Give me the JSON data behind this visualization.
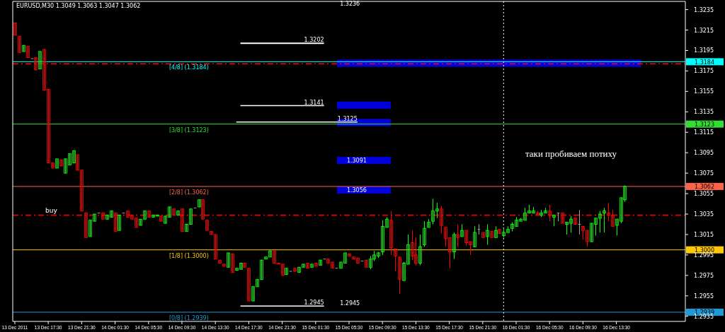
{
  "chart_data": {
    "type": "candlestick",
    "title": "EURUSD,M30 1.3049 1.3063 1.3047 1.3062",
    "x": [
      "2011-12-13T13:30",
      "2011-12-13T14:00",
      "2011-12-13T14:30",
      "2011-12-13T15:00",
      "2011-12-13T15:30",
      "2011-12-13T16:00",
      "2011-12-13T16:30",
      "2011-12-13T17:00",
      "2011-12-13T17:30",
      "2011-12-13T18:00",
      "2011-12-13T18:30",
      "2011-12-13T19:00",
      "2011-12-13T19:30",
      "2011-12-13T20:00",
      "2011-12-13T20:30",
      "2011-12-13T21:00",
      "2011-12-13T21:30",
      "2011-12-13T22:00",
      "2011-12-13T22:30",
      "2011-12-13T23:00",
      "2011-12-13T23:30",
      "2011-12-14T00:00",
      "2011-12-14T00:30",
      "2011-12-14T01:00",
      "2011-12-14T01:30",
      "2011-12-14T02:00",
      "2011-12-14T02:30",
      "2011-12-14T03:00",
      "2011-12-14T03:30",
      "2011-12-14T04:00",
      "2011-12-14T04:30",
      "2011-12-14T05:00",
      "2011-12-14T05:30",
      "2011-12-14T06:00",
      "2011-12-14T06:30",
      "2011-12-14T07:00",
      "2011-12-14T07:30",
      "2011-12-14T08:00",
      "2011-12-14T08:30",
      "2011-12-14T09:00",
      "2011-12-14T09:30",
      "2011-12-14T10:00",
      "2011-12-14T10:30",
      "2011-12-14T11:00",
      "2011-12-14T11:30",
      "2011-12-14T12:00",
      "2011-12-14T12:30",
      "2011-12-14T13:00",
      "2011-12-14T13:30",
      "2011-12-14T14:00",
      "2011-12-14T14:30",
      "2011-12-14T15:00",
      "2011-12-14T15:30",
      "2011-12-14T16:00",
      "2011-12-14T16:30",
      "2011-12-14T17:00",
      "2011-12-14T17:30",
      "2011-12-14T18:00",
      "2011-12-14T18:30",
      "2011-12-14T19:00",
      "2011-12-14T19:30",
      "2011-12-14T20:00",
      "2011-12-14T20:30",
      "2011-12-14T21:00",
      "2011-12-14T21:30",
      "2011-12-14T22:00",
      "2011-12-14T22:30",
      "2011-12-14T23:00",
      "2011-12-14T23:30",
      "2011-12-15T00:00",
      "2011-12-15T00:30",
      "2011-12-15T01:00",
      "2011-12-15T01:30",
      "2011-12-15T02:00",
      "2011-12-15T02:30",
      "2011-12-15T03:00",
      "2011-12-15T03:30",
      "2011-12-15T04:00",
      "2011-12-15T04:30",
      "2011-12-15T05:00",
      "2011-12-15T05:30",
      "2011-12-15T06:00",
      "2011-12-15T06:30",
      "2011-12-15T07:00",
      "2011-12-15T07:30",
      "2011-12-15T08:00",
      "2011-12-15T08:30",
      "2011-12-15T09:00",
      "2011-12-15T09:30",
      "2011-12-15T10:00",
      "2011-12-15T10:30",
      "2011-12-15T11:00",
      "2011-12-15T11:30",
      "2011-12-15T12:00",
      "2011-12-15T12:30",
      "2011-12-15T13:00",
      "2011-12-15T13:30",
      "2011-12-15T14:00",
      "2011-12-15T14:30",
      "2011-12-15T15:00",
      "2011-12-15T15:30",
      "2011-12-15T16:00",
      "2011-12-15T16:30",
      "2011-12-15T17:00",
      "2011-12-15T17:30",
      "2011-12-15T18:00",
      "2011-12-15T18:30",
      "2011-12-15T19:00",
      "2011-12-15T19:30",
      "2011-12-15T20:00",
      "2011-12-15T20:30",
      "2011-12-15T21:00",
      "2011-12-15T21:30",
      "2011-12-15T22:00",
      "2011-12-15T22:30",
      "2011-12-15T23:00",
      "2011-12-15T23:30",
      "2011-12-16T00:00",
      "2011-12-16T00:30",
      "2011-12-16T01:00",
      "2011-12-16T01:30",
      "2011-12-16T02:00",
      "2011-12-16T02:30",
      "2011-12-16T03:00",
      "2011-12-16T03:30",
      "2011-12-16T04:00",
      "2011-12-16T04:30",
      "2011-12-16T05:00",
      "2011-12-16T05:30",
      "2011-12-16T06:00",
      "2011-12-16T06:30",
      "2011-12-16T07:00",
      "2011-12-16T07:30",
      "2011-12-16T08:00",
      "2011-12-16T08:30",
      "2011-12-16T09:00",
      "2011-12-16T09:30",
      "2011-12-16T10:00",
      "2011-12-16T10:30",
      "2011-12-16T11:00",
      "2011-12-16T11:30",
      "2011-12-16T12:00",
      "2011-12-16T12:30",
      "2011-12-16T13:00",
      "2011-12-16T13:30",
      "2011-12-16T14:00",
      "2011-12-16T14:30"
    ],
    "ohlc": [
      [
        1.3222,
        1.3222,
        1.321,
        1.321
      ],
      [
        1.3209,
        1.3209,
        1.3193,
        1.3193
      ],
      [
        1.3194,
        1.32,
        1.3194,
        1.32
      ],
      [
        1.3199,
        1.3199,
        1.3188,
        1.3188
      ],
      [
        1.3187,
        1.3187,
        1.3187,
        1.3187
      ],
      [
        1.3188,
        1.3188,
        1.3176,
        1.3176
      ],
      [
        1.3177,
        1.3194,
        1.3177,
        1.3194
      ],
      [
        1.3196,
        1.3196,
        1.3156,
        1.3156
      ],
      [
        1.3157,
        1.3157,
        1.3085,
        1.3085
      ],
      [
        1.3085,
        1.3085,
        1.308,
        1.308
      ],
      [
        1.308,
        1.3089,
        1.308,
        1.3089
      ],
      [
        1.3088,
        1.3088,
        1.3082,
        1.3082
      ],
      [
        1.3075,
        1.3089,
        1.3075,
        1.3089
      ],
      [
        1.3083,
        1.3094,
        1.3083,
        1.3094
      ],
      [
        1.3085,
        1.3097,
        1.3085,
        1.3097
      ],
      [
        1.3093,
        1.3093,
        1.3078,
        1.3078
      ],
      [
        1.3078,
        1.3078,
        1.3038,
        1.3038
      ],
      [
        1.3036,
        1.3036,
        1.3012,
        1.3012
      ],
      [
        1.3013,
        1.3029,
        1.3013,
        1.3029
      ],
      [
        1.3028,
        1.3035,
        1.3028,
        1.3035
      ],
      [
        1.3036,
        1.3036,
        1.3036,
        1.3036
      ],
      [
        1.3036,
        1.3036,
        1.303,
        1.303
      ],
      [
        1.303,
        1.3034,
        1.303,
        1.3034
      ],
      [
        1.3032,
        1.3038,
        1.3032,
        1.3038
      ],
      [
        1.3036,
        1.3036,
        1.3018,
        1.3018
      ],
      [
        1.3019,
        1.3034,
        1.3019,
        1.3034
      ],
      [
        1.3036,
        1.3036,
        1.3036,
        1.3036
      ],
      [
        1.3038,
        1.3038,
        1.3032,
        1.3032
      ],
      [
        1.3034,
        1.3034,
        1.303,
        1.303
      ],
      [
        1.3031,
        1.3031,
        1.3022,
        1.3022
      ],
      [
        1.3024,
        1.303,
        1.3024,
        1.303
      ],
      [
        1.303,
        1.3038,
        1.303,
        1.3038
      ],
      [
        1.3038,
        1.3038,
        1.3032,
        1.3032
      ],
      [
        1.3032,
        1.3034,
        1.3032,
        1.3034
      ],
      [
        1.3033,
        1.3034,
        1.3033,
        1.3034
      ],
      [
        1.3033,
        1.3033,
        1.3028,
        1.3028
      ],
      [
        1.3026,
        1.3033,
        1.3026,
        1.3033
      ],
      [
        1.3032,
        1.3042,
        1.3032,
        1.3042
      ],
      [
        1.304,
        1.304,
        1.3034,
        1.3034
      ],
      [
        1.3034,
        1.3038,
        1.3034,
        1.3038
      ],
      [
        1.304,
        1.304,
        1.3018,
        1.3018
      ],
      [
        1.3018,
        1.3025,
        1.3018,
        1.3025
      ],
      [
        1.3025,
        1.304,
        1.3025,
        1.304
      ],
      [
        1.3041,
        1.3041,
        1.3041,
        1.3041
      ],
      [
        1.3042,
        1.3049,
        1.3042,
        1.3049
      ],
      [
        1.3049,
        1.3049,
        1.303,
        1.303
      ],
      [
        1.3029,
        1.3029,
        1.3019,
        1.3019
      ],
      [
        1.3018,
        1.3018,
        1.3015,
        1.3015
      ],
      [
        1.3015,
        1.3015,
        1.2991,
        1.2991
      ],
      [
        1.299,
        1.299,
        1.2987,
        1.2987
      ],
      [
        1.2986,
        1.2986,
        1.2984,
        1.2984
      ],
      [
        1.2983,
        1.2997,
        1.2983,
        1.2997
      ],
      [
        1.2996,
        1.2996,
        1.2978,
        1.2978
      ],
      [
        1.298,
        1.2982,
        1.298,
        1.2982
      ],
      [
        1.2981,
        1.2987,
        1.2981,
        1.2987
      ],
      [
        1.2987,
        1.2987,
        1.2983,
        1.2983
      ],
      [
        1.2982,
        1.2982,
        1.295,
        1.295
      ],
      [
        1.295,
        1.2964,
        1.295,
        1.2964
      ],
      [
        1.2964,
        1.2971,
        1.2964,
        1.2971
      ],
      [
        1.2971,
        1.299,
        1.2971,
        1.299
      ],
      [
        1.2991,
        1.2993,
        1.2991,
        1.2993
      ],
      [
        1.2993,
        1.2999,
        1.2993,
        1.2999
      ],
      [
        1.2999,
        1.2999,
        1.2987,
        1.2987
      ],
      [
        1.2987,
        1.2987,
        1.2986,
        1.2986
      ],
      [
        1.2986,
        1.2986,
        1.2975,
        1.2975
      ],
      [
        1.2976,
        1.2982,
        1.2976,
        1.2982
      ],
      [
        1.2979,
        1.2979,
        1.2979,
        1.2979
      ],
      [
        1.2982,
        1.2982,
        1.2979,
        1.2979
      ],
      [
        1.2978,
        1.2983,
        1.2978,
        1.2983
      ],
      [
        1.2983,
        1.2986,
        1.2983,
        1.2986
      ],
      [
        1.2987,
        1.2987,
        1.2982,
        1.2982
      ],
      [
        1.2983,
        1.2986,
        1.2983,
        1.2986
      ],
      [
        1.2987,
        1.2987,
        1.2984,
        1.2984
      ],
      [
        1.2985,
        1.299,
        1.2985,
        1.299
      ],
      [
        1.2991,
        1.2991,
        1.2991,
        1.2991
      ],
      [
        1.2991,
        1.2991,
        1.2987,
        1.2987
      ],
      [
        1.2988,
        1.2988,
        1.2982,
        1.2982
      ],
      [
        1.2982,
        1.2982,
        1.2982,
        1.2982
      ],
      [
        1.2982,
        1.2988,
        1.2982,
        1.2988
      ],
      [
        1.2987,
        1.2997,
        1.2987,
        1.2997
      ],
      [
        1.2996,
        1.2996,
        1.2994,
        1.2994
      ],
      [
        1.2993,
        1.2993,
        1.2991,
        1.2991
      ],
      [
        1.2992,
        1.2992,
        1.2987,
        1.2987
      ],
      [
        1.2989,
        1.2989,
        1.2989,
        1.2989
      ],
      [
        1.299,
        1.299,
        1.2983,
        1.2983
      ],
      [
        1.2983,
        1.2994,
        1.2981,
        1.2991
      ],
      [
        1.2991,
        1.2999,
        1.2989,
        1.2995
      ],
      [
        1.2994,
        1.2998,
        1.2992,
        1.2997
      ],
      [
        1.2998,
        1.3029,
        1.2995,
        1.3023
      ],
      [
        1.3022,
        1.3032,
        1.3022,
        1.303
      ],
      [
        1.3029,
        1.3038,
        1.2995,
        1.3002
      ],
      [
        1.3001,
        1.3001,
        1.2979,
        1.2994
      ],
      [
        1.2993,
        1.2993,
        1.2957,
        1.2971
      ],
      [
        1.297,
        1.2988,
        1.297,
        1.2987
      ],
      [
        1.2986,
        1.3015,
        1.2986,
        1.3005
      ],
      [
        1.3007,
        1.3019,
        1.299,
        1.2994
      ],
      [
        1.2995,
        1.3012,
        1.2985,
        1.2987
      ],
      [
        1.2987,
        1.3015,
        1.2985,
        1.3003
      ],
      [
        1.3005,
        1.3028,
        1.3003,
        1.3021
      ],
      [
        1.3022,
        1.303,
        1.3022,
        1.3027
      ],
      [
        1.3028,
        1.305,
        1.3025,
        1.3038
      ],
      [
        1.3038,
        1.3046,
        1.3031,
        1.304
      ],
      [
        1.304,
        1.3043,
        1.3016,
        1.3024
      ],
      [
        1.3022,
        1.3022,
        1.3003,
        1.3011
      ],
      [
        1.3012,
        1.3012,
        1.2982,
        1.2998
      ],
      [
        1.2998,
        1.3017,
        1.2991,
        1.3015
      ],
      [
        1.3015,
        1.3025,
        1.3003,
        1.3012
      ],
      [
        1.3013,
        1.3025,
        1.3013,
        1.3019
      ],
      [
        1.3019,
        1.3019,
        1.3004,
        1.3007
      ],
      [
        1.3008,
        1.3008,
        1.2995,
        1.3005
      ],
      [
        1.3003,
        1.3023,
        1.3003,
        1.3017
      ],
      [
        1.302,
        1.3025,
        1.3015,
        1.302
      ],
      [
        1.3017,
        1.3017,
        1.3012,
        1.3012
      ],
      [
        1.3013,
        1.3025,
        1.3005,
        1.3019
      ],
      [
        1.3018,
        1.3018,
        1.3012,
        1.3012
      ],
      [
        1.3012,
        1.3023,
        1.3012,
        1.3019
      ],
      [
        1.302,
        1.302,
        1.3016,
        1.3016
      ],
      [
        1.3014,
        1.3021,
        1.3012,
        1.3017
      ],
      [
        1.3017,
        1.3023,
        1.3017,
        1.302
      ],
      [
        1.3021,
        1.3027,
        1.3018,
        1.3025
      ],
      [
        1.3023,
        1.3032,
        1.3023,
        1.3029
      ],
      [
        1.3028,
        1.3031,
        1.3028,
        1.303
      ],
      [
        1.3029,
        1.3041,
        1.3029,
        1.3036
      ],
      [
        1.3036,
        1.3044,
        1.3036,
        1.3038
      ],
      [
        1.3036,
        1.3042,
        1.3036,
        1.3038
      ],
      [
        1.3036,
        1.3038,
        1.3034,
        1.3034
      ],
      [
        1.3034,
        1.3039,
        1.3032,
        1.3036
      ],
      [
        1.3036,
        1.3041,
        1.3036,
        1.3038
      ],
      [
        1.3038,
        1.3044,
        1.3028,
        1.3034
      ],
      [
        1.3032,
        1.3034,
        1.3023,
        1.3034
      ],
      [
        1.3036,
        1.3036,
        1.3028,
        1.3036
      ],
      [
        1.3036,
        1.3036,
        1.3026,
        1.3026
      ],
      [
        1.3025,
        1.3027,
        1.3015,
        1.3027
      ],
      [
        1.3026,
        1.3033,
        1.3017,
        1.303
      ],
      [
        1.3031,
        1.3031,
        1.3025,
        1.3025
      ],
      [
        1.3025,
        1.3039,
        1.3015,
        1.3025
      ],
      [
        1.3023,
        1.3023,
        1.301,
        1.3019
      ],
      [
        1.3019,
        1.3019,
        1.3003,
        1.3008
      ],
      [
        1.3008,
        1.3026,
        1.3008,
        1.3026
      ],
      [
        1.3025,
        1.3031,
        1.3014,
        1.3031
      ],
      [
        1.3031,
        1.3038,
        1.3017,
        1.3035
      ],
      [
        1.3036,
        1.3041,
        1.3017,
        1.3038
      ],
      [
        1.3036,
        1.3046,
        1.3028,
        1.3034
      ],
      [
        1.3034,
        1.3039,
        1.3023,
        1.3023
      ],
      [
        1.3024,
        1.303,
        1.3014,
        1.303
      ],
      [
        1.3028,
        1.3051,
        1.3026,
        1.3051
      ],
      [
        1.3049,
        1.3063,
        1.3047,
        1.3062
      ]
    ],
    "colors": [
      "#ff0000",
      "#ff0000",
      "#00ff00",
      "#ff0000",
      "#a0a0a0",
      "#ff0000",
      "#00ff00",
      "#ff0000",
      "#ff0000",
      "#ff0000",
      "#00ff00",
      "#ff0000",
      "#00ff00",
      "#00ff00",
      "#00ff00",
      "#ff0000",
      "#ff0000",
      "#ff0000",
      "#00ff00",
      "#00ff00",
      "#a0a0a0",
      "#ff0000",
      "#00ff00",
      "#00ff00",
      "#ff0000",
      "#00ff00",
      "#a0a0a0",
      "#ff0000",
      "#ff0000",
      "#ff0000",
      "#00ff00",
      "#00ff00",
      "#ff0000",
      "#00ff00",
      "#00ff00",
      "#ff0000",
      "#00ff00",
      "#00ff00",
      "#ff0000",
      "#00ff00",
      "#ff0000",
      "#00ff00",
      "#00ff00",
      "#a0a0a0",
      "#00ff00",
      "#ff0000",
      "#ff0000",
      "#ff0000",
      "#ff0000",
      "#ff0000",
      "#ff0000",
      "#00ff00",
      "#ff0000",
      "#00ff00",
      "#00ff00",
      "#ff0000",
      "#ff0000",
      "#00ff00",
      "#00ff00",
      "#00ff00",
      "#00ff00",
      "#00ff00",
      "#ff0000",
      "#ff0000",
      "#ff0000",
      "#00ff00",
      "#a0a0a0",
      "#ff0000",
      "#00ff00",
      "#00ff00",
      "#ff0000",
      "#00ff00",
      "#ff0000",
      "#00ff00",
      "#a0a0a0",
      "#ff0000",
      "#ff0000",
      "#a0a0a0",
      "#00ff00",
      "#00ff00",
      "#ff0000",
      "#ff0000",
      "#ff0000",
      "#a0a0a0",
      "#ff0000",
      "#00ff00",
      "#00ff00",
      "#00ff00",
      "#00ff00",
      "#00ff00",
      "#ff0000",
      "#ff0000",
      "#ff0000",
      "#00ff00",
      "#00ff00",
      "#ff0000",
      "#ff0000",
      "#00ff00",
      "#00ff00",
      "#00ff00",
      "#00ff00",
      "#00ff00",
      "#ff0000",
      "#ff0000",
      "#ff0000",
      "#00ff00",
      "#ff0000",
      "#00ff00",
      "#ff0000",
      "#ff0000",
      "#00ff00",
      "#a0a0a0",
      "#ff0000",
      "#00ff00",
      "#ff0000",
      "#00ff00",
      "#ff0000",
      "#00ff00",
      "#00ff00",
      "#00ff00",
      "#00ff00",
      "#00ff00",
      "#00ff00",
      "#00ff00",
      "#00ff00",
      "#ff0000",
      "#00ff00",
      "#00ff00",
      "#ff0000",
      "#00ff00",
      "#a0a0a0",
      "#ff0000",
      "#00ff00",
      "#00ff00",
      "#ff0000",
      "#a0a0a0",
      "#ff0000",
      "#ff0000",
      "#00ff00",
      "#00ff00",
      "#00ff00",
      "#00ff00",
      "#ff0000",
      "#ff0000",
      "#00ff00",
      "#00ff00",
      "#00ff00"
    ],
    "series": [
      {
        "type": "line",
        "x": [
          "2011-12-14T16:30",
          "2011-12-15T02:30"
        ],
        "values": [
          1.3202,
          1.3202
        ],
        "color": "#ffffff"
      },
      {
        "type": "line",
        "x": [
          "2011-12-14T16:30",
          "2011-12-15T02:30"
        ],
        "values": [
          1.3141,
          1.3141
        ],
        "color": "#ffffff"
      },
      {
        "type": "line",
        "x": [
          "2011-12-14T16:00",
          "2011-12-15T06:30"
        ],
        "values": [
          1.3125,
          1.3125
        ],
        "color": "#ffffff"
      },
      {
        "type": "line",
        "x": [
          "2011-12-14T16:30",
          "2011-12-15T02:30"
        ],
        "values": [
          1.2945,
          1.2945
        ],
        "color": "#ffffff"
      }
    ],
    "bands": [
      {
        "axis": "y",
        "from": 1.3179,
        "to": 1.3186,
        "color": "#0000dd"
      },
      {
        "axis": "y",
        "from": 1.3138,
        "to": 1.3145,
        "color": "#0000dd"
      },
      {
        "axis": "y",
        "from": 1.3121,
        "to": 1.3128,
        "color": "#0000dd"
      },
      {
        "axis": "y",
        "from": 1.3084,
        "to": 1.3091,
        "label": "1.3091",
        "color": "#0000dd"
      },
      {
        "axis": "y",
        "from": 1.3055,
        "to": 1.3062,
        "label": "1.3056",
        "color": "#0000dd"
      }
    ],
    "ref_lines": [
      {
        "axis": "y",
        "value": 1.3184,
        "label": "[4/8] (1.3184)",
        "color": "#00ffff",
        "line_style": "solid"
      },
      {
        "axis": "y",
        "value": 1.3123,
        "label": "[3/8] (1.3123)",
        "color": "#33dd33",
        "line_style": "solid"
      },
      {
        "axis": "y",
        "value": 1.3062,
        "label": "[2/8] (1.3062)",
        "color": "#ff6347",
        "line_style": "solid"
      },
      {
        "axis": "y",
        "value": 1.3,
        "label": "[1/8] (1.3000)",
        "color": "#ffc800",
        "line_style": "solid"
      },
      {
        "axis": "y",
        "value": 1.2939,
        "label": "[0/8] (1.2939)",
        "color": "#1e9ad6",
        "line_style": "solid"
      },
      {
        "axis": "y",
        "value": 1.3182,
        "color": "#ff0000",
        "line_style": "dashed"
      },
      {
        "axis": "y",
        "value": 1.3034,
        "label": "buy",
        "color": "#ff0000",
        "line_style": "dashed"
      },
      {
        "axis": "x",
        "value": "2011-12-16T00:00",
        "color": "#ffffff",
        "line_style": "dotted"
      }
    ],
    "annotations": [
      "1.3236",
      {
        "text": "1.3202",
        "x": "2011-12-15T02:30",
        "y": 1.3202
      },
      {
        "text": "1.3141",
        "x": "2011-12-15T02:30",
        "y": 1.3141
      },
      {
        "text": "1.3125",
        "x": "2011-12-15T06:30",
        "y": 1.3125
      },
      {
        "text": "1.2945",
        "x": "2011-12-15T02:30",
        "y": 1.2945
      },
      "1.2945",
      "таки пробиваем потиху"
    ],
    "xlim": [
      "2011-12-13T13:15",
      "2011-12-16T21:45"
    ],
    "xticks": [
      {
        "value": "2011-12-13T13:30",
        "label": "13 Dec 2011"
      },
      {
        "value": "2011-12-13T17:30",
        "label": "13 Dec 17:30"
      },
      {
        "value": "2011-12-13T21:30",
        "label": "13 Dec 21:30"
      },
      {
        "value": "2011-12-14T01:30",
        "label": "14 Dec 01:30"
      },
      {
        "value": "2011-12-14T05:30",
        "label": "14 Dec 05:30"
      },
      {
        "value": "2011-12-14T09:30",
        "label": "14 Dec 09:30"
      },
      {
        "value": "2011-12-14T13:30",
        "label": "14 Dec 13:30"
      },
      {
        "value": "2011-12-14T17:30",
        "label": "14 Dec 17:30"
      },
      {
        "value": "2011-12-14T21:30",
        "label": "14 Dec 21:30"
      },
      {
        "value": "2011-12-15T01:30",
        "label": "15 Dec 01:30"
      },
      {
        "value": "2011-12-15T05:30",
        "label": "15 Dec 05:30"
      },
      {
        "value": "2011-12-15T09:30",
        "label": "15 Dec 09:30"
      },
      {
        "value": "2011-12-15T13:30",
        "label": "15 Dec 13:30"
      },
      {
        "value": "2011-12-15T17:30",
        "label": "15 Dec 17:30"
      },
      {
        "value": "2011-12-15T21:30",
        "label": "15 Dec 21:30"
      },
      {
        "value": "2011-12-16T01:30",
        "label": "16 Dec 01:30"
      },
      {
        "value": "2011-12-16T05:30",
        "label": "16 Dec 05:30"
      },
      {
        "value": "2011-12-16T09:30",
        "label": "16 Dec 09:30"
      },
      {
        "value": "2011-12-16T13:30",
        "label": "16 Dec 13:30"
      }
    ],
    "ylim": [
      1.293,
      1.3243
    ],
    "yticks": [
      1.3235,
      1.3215,
      1.3195,
      {
        "value": 1.3184,
        "label": "1.3184"
      },
      1.3175,
      1.3155,
      1.3135,
      {
        "value": 1.3123,
        "label": "1.3123"
      },
      1.3115,
      1.3095,
      1.3075,
      {
        "value": 1.3062,
        "label": "1.3062"
      },
      1.3055,
      1.3035,
      1.3015,
      {
        "value": 1.3,
        "label": "1.3000"
      },
      1.2995,
      1.2975,
      1.2955,
      {
        "value": 1.2939,
        "label": "1.2939"
      },
      1.2935
    ],
    "grid": false
  }
}
